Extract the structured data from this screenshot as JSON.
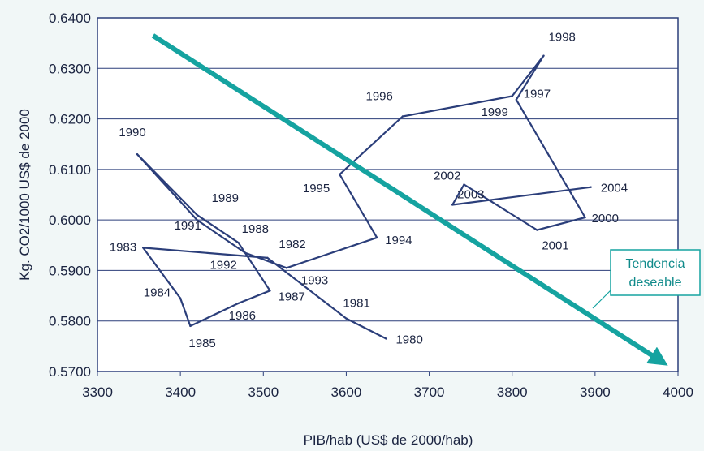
{
  "chart_data": {
    "type": "line",
    "xlabel": "PIB/hab (US$ de 2000/hab)",
    "ylabel": "Kg. CO2/1000 US$ de 2000",
    "xlim": [
      3300,
      4000
    ],
    "ylim": [
      0.57,
      0.64
    ],
    "x_ticks": [
      "3300",
      "3400",
      "3500",
      "3600",
      "3700",
      "3800",
      "3900",
      "4000"
    ],
    "y_ticks": [
      "0.5700",
      "0.5800",
      "0.5900",
      "0.6000",
      "0.6100",
      "0.6200",
      "0.6300",
      "0.6400"
    ],
    "grid": "horizontal",
    "series": [
      {
        "color": "#2b3e7a",
        "points": [
          {
            "year": "1980",
            "x": 3648,
            "y": 0.5765
          },
          {
            "year": "1981",
            "x": 3600,
            "y": 0.5805
          },
          {
            "year": "1982",
            "x": 3505,
            "y": 0.5925
          },
          {
            "year": "1983",
            "x": 3355,
            "y": 0.5945
          },
          {
            "year": "1984",
            "x": 3400,
            "y": 0.5845
          },
          {
            "year": "1985",
            "x": 3412,
            "y": 0.579
          },
          {
            "year": "1986",
            "x": 3470,
            "y": 0.5835
          },
          {
            "year": "1987",
            "x": 3508,
            "y": 0.586
          },
          {
            "year": "1988",
            "x": 3470,
            "y": 0.5955
          },
          {
            "year": "1989",
            "x": 3420,
            "y": 0.601
          },
          {
            "year": "1990",
            "x": 3348,
            "y": 0.613
          },
          {
            "year": "1991",
            "x": 3420,
            "y": 0.6
          },
          {
            "year": "1992",
            "x": 3478,
            "y": 0.5935
          },
          {
            "year": "1993",
            "x": 3528,
            "y": 0.5905
          },
          {
            "year": "1994",
            "x": 3637,
            "y": 0.5965
          },
          {
            "year": "1995",
            "x": 3592,
            "y": 0.609
          },
          {
            "year": "1996",
            "x": 3668,
            "y": 0.6205
          },
          {
            "year": "1997",
            "x": 3800,
            "y": 0.6245
          },
          {
            "year": "1998",
            "x": 3838,
            "y": 0.6325
          },
          {
            "year": "1999",
            "x": 3805,
            "y": 0.6238
          },
          {
            "year": "2000",
            "x": 3888,
            "y": 0.6005
          },
          {
            "year": "2001",
            "x": 3830,
            "y": 0.598
          },
          {
            "year": "2002",
            "x": 3742,
            "y": 0.607
          },
          {
            "year": "2003",
            "x": 3728,
            "y": 0.603
          },
          {
            "year": "2004",
            "x": 3895,
            "y": 0.6065
          }
        ]
      }
    ],
    "trend_arrow": {
      "label_line1": "Tendencia",
      "label_line2": "deseable",
      "from": {
        "x": 3367,
        "y": 0.6365
      },
      "to": {
        "x": 3980,
        "y": 0.572
      },
      "color": "#15a3a0"
    }
  }
}
